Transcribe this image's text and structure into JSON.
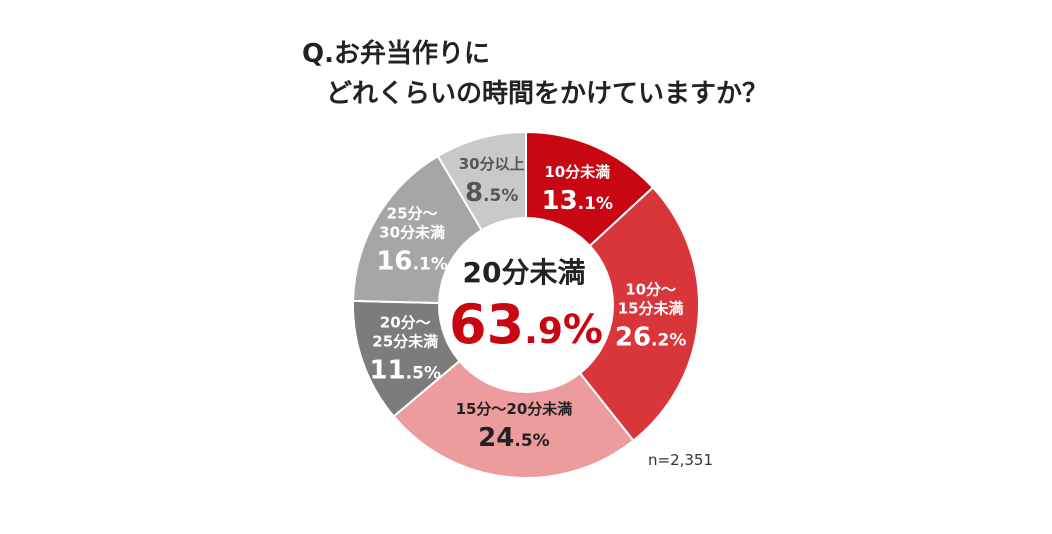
{
  "title": {
    "line1": "Q.お弁当作りに",
    "line2": "どれくらいの時間をかけていますか？"
  },
  "note": "n=2,351",
  "chart_data": {
    "type": "pie",
    "title": "Q.お弁当作りに どれくらいの時間をかけていますか？",
    "unit": "%",
    "slices": [
      {
        "label": [
          "10分未満"
        ],
        "value": 13.1,
        "display": [
          "13",
          ".1",
          "%"
        ],
        "color": "#c80712",
        "text_color": "#ffffff"
      },
      {
        "label": [
          "10分〜",
          "15分未満"
        ],
        "value": 26.2,
        "display": [
          "26",
          ".2",
          "%"
        ],
        "color": "#d9363b",
        "text_color": "#ffffff"
      },
      {
        "label": [
          "15分〜20分未満"
        ],
        "value": 24.5,
        "display": [
          "24",
          ".5",
          "%"
        ],
        "color": "#ed9c9d",
        "text_color": "#222222"
      },
      {
        "label": [
          "20分〜",
          "25分未満"
        ],
        "value": 11.5,
        "display": [
          "11",
          ".5",
          "%"
        ],
        "color": "#7c7c7c",
        "text_color": "#ffffff"
      },
      {
        "label": [
          "25分〜",
          "30分未満"
        ],
        "value": 16.1,
        "display": [
          "16",
          ".1",
          "%"
        ],
        "color": "#a6a6a6",
        "text_color": "#ffffff"
      },
      {
        "label": [
          "30分以上"
        ],
        "value": 8.5,
        "display": [
          "8",
          ".5",
          "%"
        ],
        "color": "#c9c9c9",
        "text_color": "#555555"
      }
    ],
    "center_label": "20分未満",
    "center_value": "63.9%",
    "center_value_parts": [
      "63",
      ".9",
      "%"
    ],
    "center_color": "#c80712"
  }
}
